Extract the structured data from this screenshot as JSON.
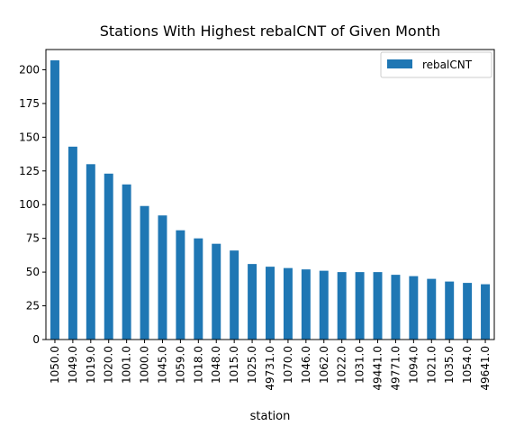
{
  "chart_data": {
    "type": "bar",
    "title": "Stations With Highest rebalCNT of Given Month",
    "xlabel": "station",
    "ylabel": "",
    "ylim": [
      0,
      215
    ],
    "yticks": [
      0,
      25,
      50,
      75,
      100,
      125,
      150,
      175,
      200
    ],
    "grid": false,
    "legend_position": "top-right",
    "categories": [
      "1050.0",
      "1049.0",
      "1019.0",
      "1020.0",
      "1001.0",
      "1000.0",
      "1045.0",
      "1059.0",
      "1018.0",
      "1048.0",
      "1015.0",
      "1025.0",
      "49731.0",
      "1070.0",
      "1046.0",
      "1062.0",
      "1022.0",
      "1031.0",
      "49441.0",
      "49771.0",
      "1094.0",
      "1021.0",
      "1035.0",
      "1054.0",
      "49641.0"
    ],
    "series": [
      {
        "name": "rebalCNT",
        "color": "#1f77b4",
        "values": [
          207,
          143,
          130,
          123,
          115,
          99,
          92,
          81,
          75,
          71,
          66,
          56,
          54,
          53,
          52,
          51,
          50,
          50,
          50,
          48,
          47,
          45,
          43,
          42,
          41
        ]
      }
    ]
  }
}
